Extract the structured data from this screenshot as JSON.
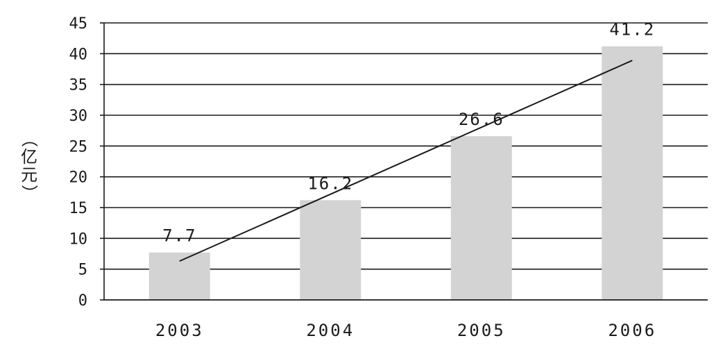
{
  "chart_data": {
    "type": "bar",
    "categories": [
      "2003",
      "2004",
      "2005",
      "2006"
    ],
    "values": [
      7.7,
      16.2,
      26.6,
      41.2
    ],
    "data_labels": [
      "7.7",
      "16.2",
      "26.6",
      "41.2"
    ],
    "title": "",
    "xlabel": "",
    "ylabel": "（亿元）",
    "ylim": [
      0,
      45
    ],
    "yticks": [
      0,
      5,
      10,
      15,
      20,
      25,
      30,
      35,
      40,
      45
    ],
    "grid": true,
    "legend": "none",
    "trendline": {
      "type": "linear",
      "start_value": 6.3,
      "end_value": 38.9
    },
    "colors": {
      "bar": "#d3d3d3",
      "gridline": "#1a1a1a",
      "trendline": "#1a1a1a",
      "text": "#1a1a1a"
    }
  }
}
